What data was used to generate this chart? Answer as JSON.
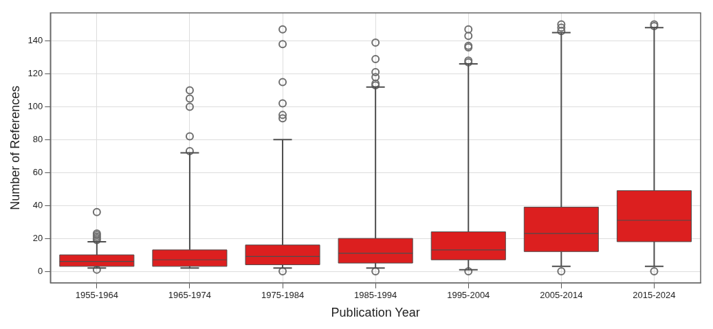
{
  "chart_data": {
    "type": "box",
    "xlabel": "Publication Year",
    "ylabel": "Number of References",
    "categories": [
      "1955-1964",
      "1965-1974",
      "1975-1984",
      "1985-1994",
      "1995-2004",
      "2005-2014",
      "2015-2024"
    ],
    "color": "#dc1f1f",
    "boxes": [
      {
        "low": 2,
        "q1": 3,
        "median": 6,
        "q3": 10,
        "high": 18,
        "outliers": [
          1,
          19,
          20,
          21,
          22,
          23,
          36
        ]
      },
      {
        "low": 2,
        "q1": 3,
        "median": 7,
        "q3": 13,
        "high": 72,
        "outliers": [
          73,
          82,
          100,
          105,
          110
        ]
      },
      {
        "low": 2,
        "q1": 4,
        "median": 9,
        "q3": 16,
        "high": 80,
        "outliers": [
          0,
          93,
          95,
          102,
          115,
          138,
          147
        ]
      },
      {
        "low": 2,
        "q1": 5,
        "median": 11,
        "q3": 20,
        "high": 112,
        "outliers": [
          0,
          113,
          114,
          118,
          121,
          129,
          139
        ]
      },
      {
        "low": 1,
        "q1": 7,
        "median": 13,
        "q3": 24,
        "high": 126,
        "outliers": [
          0,
          127,
          128,
          136,
          137,
          143,
          147
        ]
      },
      {
        "low": 3,
        "q1": 12,
        "median": 23,
        "q3": 39,
        "high": 145,
        "outliers": [
          0,
          146,
          148,
          150
        ]
      },
      {
        "low": 3,
        "q1": 18,
        "median": 31,
        "q3": 49,
        "high": 148,
        "outliers": [
          0,
          149,
          150
        ]
      }
    ],
    "ylim": [
      -7,
      157
    ],
    "yticks": [
      0,
      20,
      40,
      60,
      80,
      100,
      120,
      140
    ],
    "grid": true,
    "legend": false
  }
}
